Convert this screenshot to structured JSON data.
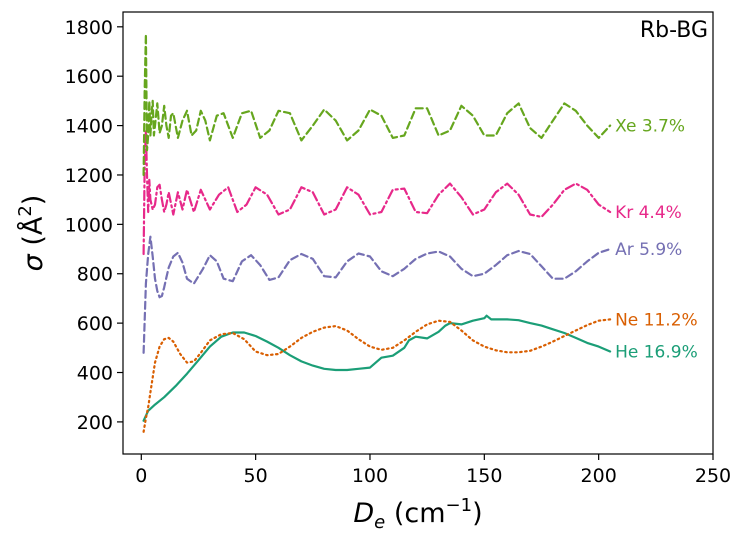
{
  "chart_data": {
    "type": "line",
    "title": "Rb-BG",
    "xlabel": "D_e (cm^-1)",
    "ylabel": "σ (Å^2)",
    "xlim": [
      -8,
      250
    ],
    "ylim": [
      70,
      1860
    ],
    "xticks": [
      0,
      50,
      100,
      150,
      200,
      250
    ],
    "yticks": [
      200,
      400,
      600,
      800,
      1000,
      1200,
      1400,
      1600,
      1800
    ],
    "series": [
      {
        "name": "He",
        "label": "He 16.9%",
        "color": "#1b9e77",
        "dash": "solid",
        "x": [
          1,
          3,
          6,
          10,
          15,
          20,
          25,
          30,
          35,
          40,
          45,
          50,
          55,
          60,
          65,
          70,
          75,
          80,
          85,
          90,
          95,
          100,
          105,
          110,
          115,
          117,
          120,
          125,
          130,
          133,
          135,
          137,
          140,
          145,
          150,
          151,
          153,
          160,
          165,
          170,
          175,
          180,
          185,
          190,
          195,
          200,
          205
        ],
        "values": [
          205,
          245,
          270,
          300,
          345,
          395,
          450,
          505,
          545,
          562,
          562,
          548,
          525,
          500,
          470,
          445,
          428,
          415,
          410,
          410,
          415,
          420,
          460,
          468,
          500,
          530,
          545,
          538,
          565,
          590,
          600,
          598,
          595,
          610,
          620,
          630,
          615,
          615,
          612,
          600,
          590,
          575,
          560,
          540,
          520,
          505,
          485
        ]
      },
      {
        "name": "Ne",
        "label": "Ne 11.2%",
        "color": "#d95f02",
        "dash": "dotted",
        "x": [
          1,
          2,
          3,
          4,
          5,
          6,
          8,
          10,
          12,
          14,
          17,
          20,
          23,
          26,
          30,
          35,
          40,
          45,
          50,
          55,
          60,
          65,
          70,
          75,
          80,
          85,
          90,
          95,
          100,
          105,
          110,
          115,
          120,
          125,
          130,
          135,
          140,
          145,
          150,
          155,
          160,
          165,
          170,
          175,
          180,
          185,
          190,
          195,
          200,
          205
        ],
        "values": [
          160,
          215,
          260,
          320,
          380,
          440,
          505,
          535,
          540,
          525,
          475,
          440,
          445,
          480,
          530,
          555,
          560,
          535,
          485,
          470,
          475,
          505,
          540,
          565,
          582,
          588,
          570,
          535,
          505,
          492,
          500,
          530,
          565,
          595,
          610,
          605,
          570,
          530,
          505,
          490,
          482,
          482,
          488,
          505,
          525,
          548,
          570,
          592,
          610,
          615
        ]
      },
      {
        "name": "Ar",
        "label": "Ar 5.9%",
        "color": "#7570b3",
        "dash": "dashed",
        "x": [
          1,
          2,
          3,
          4,
          5,
          6,
          7,
          8,
          9,
          10,
          11,
          12,
          14,
          16,
          18,
          20,
          23,
          27,
          30,
          33,
          36,
          40,
          44,
          48,
          52,
          56,
          60,
          65,
          70,
          75,
          80,
          85,
          90,
          95,
          100,
          105,
          110,
          115,
          120,
          125,
          130,
          135,
          140,
          145,
          150,
          155,
          160,
          165,
          170,
          175,
          180,
          185,
          190,
          195,
          200,
          205
        ],
        "values": [
          480,
          760,
          880,
          950,
          870,
          780,
          730,
          705,
          710,
          745,
          785,
          825,
          870,
          885,
          845,
          780,
          760,
          820,
          875,
          850,
          780,
          770,
          850,
          875,
          835,
          775,
          785,
          855,
          880,
          860,
          790,
          785,
          850,
          882,
          870,
          810,
          790,
          820,
          860,
          882,
          890,
          870,
          820,
          790,
          800,
          835,
          875,
          892,
          880,
          830,
          780,
          780,
          810,
          850,
          885,
          900
        ]
      },
      {
        "name": "Kr",
        "label": "Kr 4.4%",
        "color": "#e7298a",
        "dash": "dashdot",
        "x": [
          1,
          1.5,
          2,
          2.5,
          3,
          3.5,
          4,
          5,
          6,
          7,
          8,
          9,
          10,
          11,
          12,
          14,
          16,
          18,
          20,
          23,
          26,
          30,
          34,
          38,
          42,
          46,
          50,
          55,
          60,
          65,
          70,
          75,
          80,
          85,
          90,
          95,
          100,
          105,
          110,
          115,
          120,
          125,
          130,
          135,
          140,
          145,
          150,
          155,
          160,
          165,
          170,
          175,
          180,
          185,
          190,
          195,
          200,
          205
        ],
        "values": [
          880,
          1250,
          1380,
          1200,
          1050,
          1180,
          1100,
          1060,
          1080,
          1150,
          1160,
          1100,
          1050,
          1080,
          1130,
          1040,
          1130,
          1060,
          1140,
          1050,
          1140,
          1060,
          1120,
          1150,
          1050,
          1080,
          1150,
          1120,
          1040,
          1060,
          1150,
          1130,
          1040,
          1060,
          1150,
          1120,
          1040,
          1050,
          1140,
          1145,
          1050,
          1045,
          1120,
          1165,
          1110,
          1040,
          1060,
          1130,
          1165,
          1120,
          1040,
          1030,
          1080,
          1140,
          1165,
          1140,
          1080,
          1050
        ]
      },
      {
        "name": "Xe",
        "label": "Xe 3.7%",
        "color": "#66a61e",
        "dash": "dashed",
        "x": [
          1,
          1.5,
          2,
          2.5,
          3,
          3.5,
          4,
          4.5,
          5,
          5.5,
          6,
          7,
          8,
          9,
          10,
          11,
          12,
          13,
          14,
          16,
          18,
          20,
          22,
          24,
          26,
          28,
          30,
          33,
          36,
          40,
          44,
          48,
          52,
          56,
          60,
          65,
          70,
          75,
          80,
          85,
          90,
          95,
          100,
          105,
          110,
          115,
          120,
          125,
          130,
          135,
          140,
          145,
          150,
          155,
          160,
          165,
          170,
          175,
          180,
          185,
          190,
          195,
          200,
          205
        ],
        "values": [
          1200,
          1550,
          1770,
          1300,
          1360,
          1500,
          1360,
          1450,
          1500,
          1360,
          1400,
          1490,
          1370,
          1400,
          1480,
          1400,
          1350,
          1440,
          1450,
          1350,
          1420,
          1460,
          1360,
          1380,
          1460,
          1420,
          1340,
          1440,
          1450,
          1350,
          1450,
          1460,
          1350,
          1380,
          1460,
          1450,
          1340,
          1400,
          1465,
          1420,
          1340,
          1380,
          1465,
          1440,
          1350,
          1360,
          1470,
          1470,
          1360,
          1380,
          1480,
          1440,
          1360,
          1360,
          1450,
          1490,
          1390,
          1350,
          1420,
          1490,
          1460,
          1400,
          1350,
          1400
        ]
      }
    ]
  }
}
